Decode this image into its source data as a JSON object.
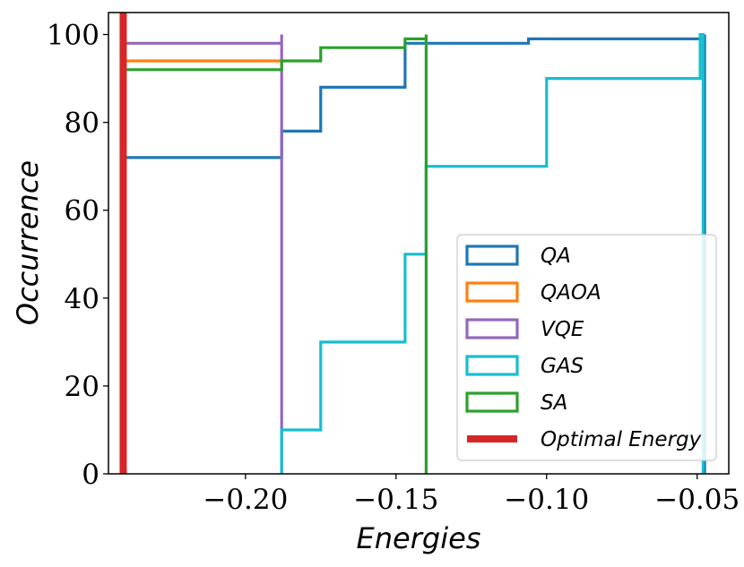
{
  "chart_data": {
    "type": "step",
    "title": "",
    "xlabel": "Energies",
    "ylabel": "Occurrence",
    "xlim": [
      -0.2455,
      -0.0395
    ],
    "ylim": [
      0,
      105
    ],
    "xticks": [
      -0.2,
      -0.15,
      -0.1,
      -0.05
    ],
    "xtick_labels": [
      "−0.20",
      "−0.15",
      "−0.10",
      "−0.05"
    ],
    "yticks": [
      0,
      20,
      40,
      60,
      80,
      100
    ],
    "ytick_labels": [
      "0",
      "20",
      "40",
      "60",
      "80",
      "100"
    ],
    "legend_position": "lower right",
    "series": [
      {
        "name": "QA",
        "color": "#1f77b4",
        "points": [
          [
            -0.2406,
            72
          ],
          [
            -0.188,
            72
          ],
          [
            -0.188,
            78
          ],
          [
            -0.175,
            78
          ],
          [
            -0.175,
            88
          ],
          [
            -0.147,
            88
          ],
          [
            -0.147,
            98
          ],
          [
            -0.106,
            98
          ],
          [
            -0.106,
            99
          ],
          [
            -0.0475,
            99
          ],
          [
            -0.0475,
            100
          ],
          [
            -0.0475,
            0
          ]
        ]
      },
      {
        "name": "QAOA",
        "color": "#ff7f0e",
        "points": [
          [
            -0.2406,
            94
          ],
          [
            -0.188,
            94
          ]
        ]
      },
      {
        "name": "VQE",
        "color": "#9467bd",
        "points": [
          [
            -0.2406,
            98
          ],
          [
            -0.188,
            98
          ],
          [
            -0.188,
            100
          ],
          [
            -0.188,
            0
          ]
        ]
      },
      {
        "name": "GAS",
        "color": "#17becf",
        "points": [
          [
            -0.188,
            0
          ],
          [
            -0.188,
            10
          ],
          [
            -0.175,
            10
          ],
          [
            -0.175,
            30
          ],
          [
            -0.147,
            30
          ],
          [
            -0.147,
            50
          ],
          [
            -0.14,
            50
          ],
          [
            -0.14,
            70
          ],
          [
            -0.1,
            70
          ],
          [
            -0.1,
            90
          ],
          [
            -0.049,
            90
          ],
          [
            -0.049,
            100
          ],
          [
            -0.048,
            100
          ],
          [
            -0.048,
            0
          ]
        ]
      },
      {
        "name": "SA",
        "color": "#2ca02c",
        "points": [
          [
            -0.2406,
            92
          ],
          [
            -0.188,
            92
          ],
          [
            -0.188,
            94
          ],
          [
            -0.175,
            94
          ],
          [
            -0.175,
            97
          ],
          [
            -0.147,
            97
          ],
          [
            -0.147,
            99
          ],
          [
            -0.14,
            99
          ],
          [
            -0.14,
            100
          ],
          [
            -0.14,
            0
          ]
        ]
      }
    ],
    "reference_lines": [
      {
        "name": "Optimal Energy",
        "color": "#d62728",
        "x": -0.2406
      }
    ]
  }
}
